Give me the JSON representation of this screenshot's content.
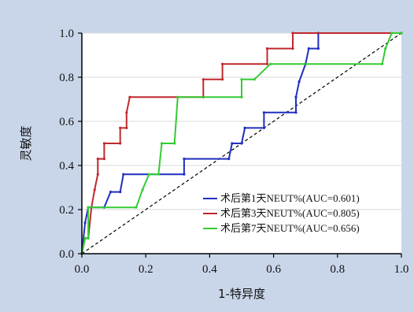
{
  "chart_data": {
    "type": "line",
    "xlabel": "1-特异度",
    "ylabel": "灵敏度",
    "xlim": [
      0.0,
      1.0
    ],
    "ylim": [
      0.0,
      1.0
    ],
    "x_ticks": [
      "0.0",
      "0.2",
      "0.4",
      "0.6",
      "0.8",
      "1.0"
    ],
    "y_ticks": [
      "0.0",
      "0.2",
      "0.4",
      "0.6",
      "0.8",
      "1.0"
    ],
    "grid": "horizontal",
    "legend_position": "bottom-right",
    "background_color": "#c9d6ea",
    "plot_background": "#ffffff",
    "reference_line": {
      "style": "dashed",
      "color": "#000000",
      "from": [
        0,
        0
      ],
      "to": [
        1,
        1
      ]
    },
    "series": [
      {
        "name": "术后第1天NEUT%(AUC=0.601)",
        "color": "#1f2fbf",
        "points": [
          [
            0,
            0
          ],
          [
            0.01,
            0.14
          ],
          [
            0.02,
            0.21
          ],
          [
            0.07,
            0.21
          ],
          [
            0.09,
            0.28
          ],
          [
            0.12,
            0.28
          ],
          [
            0.13,
            0.36
          ],
          [
            0.32,
            0.36
          ],
          [
            0.32,
            0.43
          ],
          [
            0.46,
            0.43
          ],
          [
            0.47,
            0.5
          ],
          [
            0.5,
            0.5
          ],
          [
            0.51,
            0.57
          ],
          [
            0.57,
            0.57
          ],
          [
            0.57,
            0.64
          ],
          [
            0.67,
            0.64
          ],
          [
            0.67,
            0.71
          ],
          [
            0.68,
            0.78
          ],
          [
            0.7,
            0.86
          ],
          [
            0.71,
            0.93
          ],
          [
            0.74,
            0.93
          ],
          [
            0.74,
            1.0
          ],
          [
            1.0,
            1.0
          ]
        ]
      },
      {
        "name": "术后第3天NEUT%(AUC=0.805)",
        "color": "#c0282d",
        "points": [
          [
            0,
            0
          ],
          [
            0.01,
            0.07
          ],
          [
            0.02,
            0.07
          ],
          [
            0.03,
            0.21
          ],
          [
            0.04,
            0.29
          ],
          [
            0.05,
            0.36
          ],
          [
            0.05,
            0.43
          ],
          [
            0.07,
            0.43
          ],
          [
            0.07,
            0.5
          ],
          [
            0.12,
            0.5
          ],
          [
            0.12,
            0.57
          ],
          [
            0.14,
            0.57
          ],
          [
            0.14,
            0.64
          ],
          [
            0.15,
            0.71
          ],
          [
            0.38,
            0.71
          ],
          [
            0.38,
            0.79
          ],
          [
            0.44,
            0.79
          ],
          [
            0.44,
            0.86
          ],
          [
            0.58,
            0.86
          ],
          [
            0.58,
            0.93
          ],
          [
            0.66,
            0.93
          ],
          [
            0.66,
            1.0
          ],
          [
            1.0,
            1.0
          ]
        ]
      },
      {
        "name": "术后第7天NEUT%(AUC=0.656)",
        "color": "#33cc33",
        "points": [
          [
            0,
            0
          ],
          [
            0.01,
            0.07
          ],
          [
            0.02,
            0.07
          ],
          [
            0.02,
            0.21
          ],
          [
            0.17,
            0.21
          ],
          [
            0.19,
            0.29
          ],
          [
            0.21,
            0.36
          ],
          [
            0.24,
            0.36
          ],
          [
            0.25,
            0.5
          ],
          [
            0.29,
            0.5
          ],
          [
            0.3,
            0.71
          ],
          [
            0.5,
            0.71
          ],
          [
            0.5,
            0.79
          ],
          [
            0.54,
            0.79
          ],
          [
            0.59,
            0.86
          ],
          [
            0.94,
            0.86
          ],
          [
            0.95,
            0.93
          ],
          [
            0.97,
            1.0
          ],
          [
            1.0,
            1.0
          ]
        ]
      }
    ]
  }
}
